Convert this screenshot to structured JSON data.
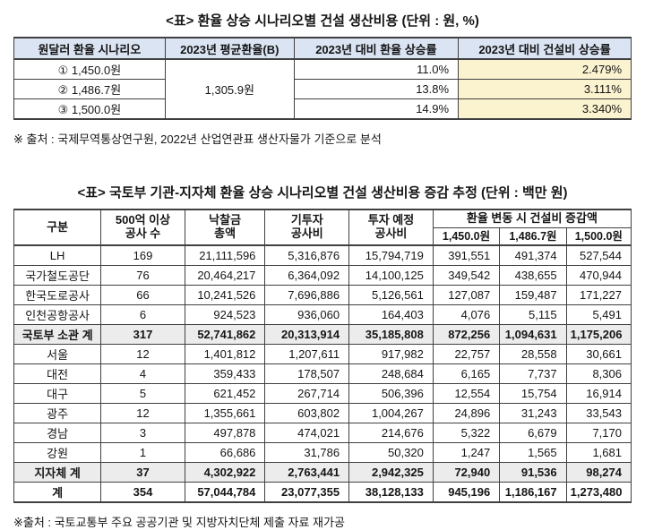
{
  "colors": {
    "header_bg": "#dbe4f3",
    "highlight_bg": "#fbf2cf",
    "summary_bg": "#ececec",
    "border": "#404040"
  },
  "table1": {
    "title": "<표> 환율 상승 시나리오별 건설 생산비용 (단위 : 원, %)",
    "headers": [
      "원달러 환율 시나리오",
      "2023년 평균환율(B)",
      "2023년 대비 환율 상승률",
      "2023년 대비 건설비 상승률"
    ],
    "avg_rate": "1,305.9원",
    "rows": [
      {
        "scenario": "① 1,450.0원",
        "rate_increase": "11.0%",
        "cost_increase": "2.479%"
      },
      {
        "scenario": "② 1,486.7원",
        "rate_increase": "13.8%",
        "cost_increase": "3.111%"
      },
      {
        "scenario": "③ 1,500.0원",
        "rate_increase": "14.9%",
        "cost_increase": "3.340%"
      }
    ],
    "note": "※ 출처 : 국제무역통상연구원, 2022년 산업연관표 생산자물가 기준으로 분석"
  },
  "table2": {
    "title": "<표> 국토부 기관-지자체 환율 상승 시나리오별 건설 생산비용 증감 추정 (단위 : 백만 원)",
    "columns": [
      "구분",
      "500억 이상\n공사 수",
      "낙찰금\n총액",
      "기투자\n공사비",
      "투자 예정\n공사비"
    ],
    "group_header": "환율 변동 시 건설비 증감액",
    "scenario_headers": [
      "1,450.0원",
      "1,486.7원",
      "1,500.0원"
    ],
    "rows": [
      {
        "label": "LH",
        "style": "normal",
        "values": [
          "169",
          "21,111,596",
          "5,316,876",
          "15,794,719",
          "391,551",
          "491,374",
          "527,544"
        ]
      },
      {
        "label": "국가철도공단",
        "style": "normal",
        "values": [
          "76",
          "20,464,217",
          "6,364,092",
          "14,100,125",
          "349,542",
          "438,655",
          "470,944"
        ]
      },
      {
        "label": "한국도로공사",
        "style": "normal",
        "values": [
          "66",
          "10,241,526",
          "7,696,886",
          "5,126,561",
          "127,087",
          "159,487",
          "171,227"
        ]
      },
      {
        "label": "인천공항공사",
        "style": "normal",
        "values": [
          "6",
          "924,523",
          "936,060",
          "164,403",
          "4,076",
          "5,115",
          "5,491"
        ]
      },
      {
        "label": "국토부 소관 계",
        "style": "summary",
        "values": [
          "317",
          "52,741,862",
          "20,313,914",
          "35,185,808",
          "872,256",
          "1,094,631",
          "1,175,206"
        ]
      },
      {
        "label": "서울",
        "style": "normal",
        "values": [
          "12",
          "1,401,812",
          "1,207,611",
          "917,982",
          "22,757",
          "28,558",
          "30,661"
        ]
      },
      {
        "label": "대전",
        "style": "normal",
        "values": [
          "4",
          "359,433",
          "178,507",
          "248,684",
          "6,165",
          "7,737",
          "8,306"
        ]
      },
      {
        "label": "대구",
        "style": "normal",
        "values": [
          "5",
          "621,452",
          "267,714",
          "506,396",
          "12,554",
          "15,754",
          "16,914"
        ]
      },
      {
        "label": "광주",
        "style": "normal",
        "values": [
          "12",
          "1,355,661",
          "603,802",
          "1,004,267",
          "24,896",
          "31,243",
          "33,543"
        ]
      },
      {
        "label": "경남",
        "style": "normal",
        "values": [
          "3",
          "497,878",
          "474,021",
          "214,676",
          "5,322",
          "6,679",
          "7,170"
        ]
      },
      {
        "label": "강원",
        "style": "normal",
        "values": [
          "1",
          "66,686",
          "31,786",
          "50,320",
          "1,247",
          "1,565",
          "1,681"
        ]
      },
      {
        "label": "지자체 계",
        "style": "summary",
        "values": [
          "37",
          "4,302,922",
          "2,763,441",
          "2,942,325",
          "72,940",
          "91,536",
          "98,274"
        ]
      },
      {
        "label": "계",
        "style": "total",
        "values": [
          "354",
          "57,044,784",
          "23,077,355",
          "38,128,133",
          "945,196",
          "1,186,167",
          "1,273,480"
        ]
      }
    ],
    "note": "※출처 : 국토교통부 주요 공공기관 및 지방자치단체 제출 자료 재가공"
  }
}
